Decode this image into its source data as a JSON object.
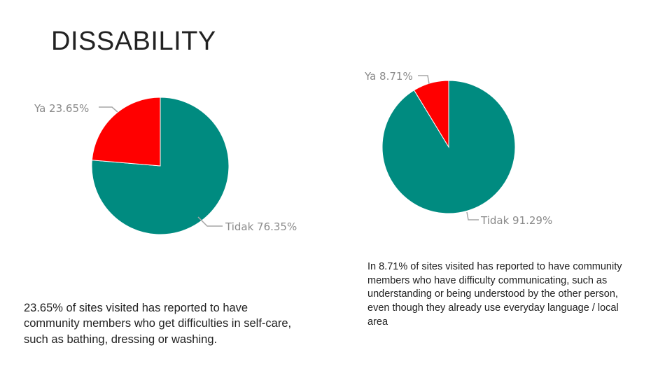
{
  "slide": {
    "title": "DISSABILITY",
    "caption_left": "23.65% of sites visited has reported  to have community members who get difficulties in self-care, such as bathing, dressing or washing.",
    "caption_right": "In 8.71% of sites visited has reported  to have community members who have difficulty communicating, such as understanding or being understood by the other person, even though they already use everyday language / local area"
  },
  "colors": {
    "ya": "#ff0000",
    "tidak": "#008b80",
    "leader": "#a6a6a6",
    "label": "#8a8a8a"
  },
  "chart_data": [
    {
      "type": "pie",
      "slices": [
        {
          "label": "Ya",
          "value": 23.65,
          "display": "Ya 23.65%"
        },
        {
          "label": "Tidak",
          "value": 76.35,
          "display": "Tidak 76.35%"
        }
      ]
    },
    {
      "type": "pie",
      "slices": [
        {
          "label": "Ya",
          "value": 8.71,
          "display": "Ya 8.71%"
        },
        {
          "label": "Tidak",
          "value": 91.29,
          "display": "Tidak 91.29%"
        }
      ]
    }
  ]
}
